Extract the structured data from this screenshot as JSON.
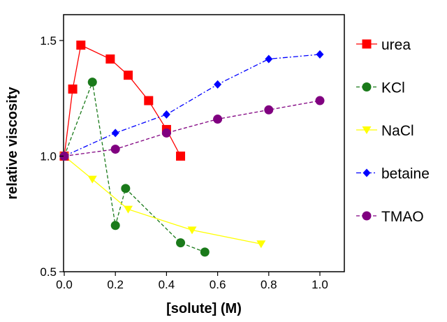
{
  "chart_data": {
    "type": "line",
    "title": "",
    "xlabel": "[solute] (M)",
    "ylabel": "relative viscosity",
    "xlim": [
      0.0,
      1.1
    ],
    "ylim": [
      0.5,
      1.6
    ],
    "xticks": [
      0.0,
      0.2,
      0.4,
      0.6,
      0.8,
      1.0
    ],
    "xtick_labels": [
      "0.0",
      "0.2",
      "0.4",
      "0.6",
      "0.8",
      "1.0"
    ],
    "yticks": [
      0.5,
      1.0,
      1.5
    ],
    "ytick_labels": [
      "0.5",
      "1.0",
      "1.5"
    ],
    "grid": false,
    "legend_position": "right",
    "series": [
      {
        "name": "urea",
        "color": "#ff0000",
        "marker": "square",
        "line_style": "solid",
        "x": [
          0.0,
          0.033,
          0.065,
          0.18,
          0.25,
          0.33,
          0.4,
          0.455
        ],
        "y": [
          1.0,
          1.29,
          1.48,
          1.42,
          1.35,
          1.24,
          1.115,
          1.0
        ]
      },
      {
        "name": "KCl",
        "color": "#1a7a1a",
        "marker": "circle",
        "line_style": "dashed",
        "x": [
          0.0,
          0.11,
          0.2,
          0.24,
          0.455,
          0.55
        ],
        "y": [
          1.0,
          1.32,
          0.7,
          0.86,
          0.625,
          0.585
        ]
      },
      {
        "name": "NaCl",
        "color": "#ffff00",
        "marker": "triangle-down",
        "line_style": "solid",
        "x": [
          0.0,
          0.11,
          0.25,
          0.5,
          0.77
        ],
        "y": [
          1.0,
          0.9,
          0.77,
          0.68,
          0.62
        ]
      },
      {
        "name": "betaine",
        "color": "#0000ff",
        "marker": "diamond",
        "line_style": "dashdot",
        "x": [
          0.0,
          0.2,
          0.4,
          0.6,
          0.8,
          1.0
        ],
        "y": [
          1.0,
          1.1,
          1.18,
          1.31,
          1.42,
          1.44
        ]
      },
      {
        "name": "TMAO",
        "color": "#800080",
        "marker": "circle",
        "line_style": "dashed",
        "x": [
          0.0,
          0.2,
          0.4,
          0.6,
          0.8,
          1.0
        ],
        "y": [
          1.0,
          1.03,
          1.1,
          1.16,
          1.2,
          1.24
        ]
      }
    ]
  }
}
